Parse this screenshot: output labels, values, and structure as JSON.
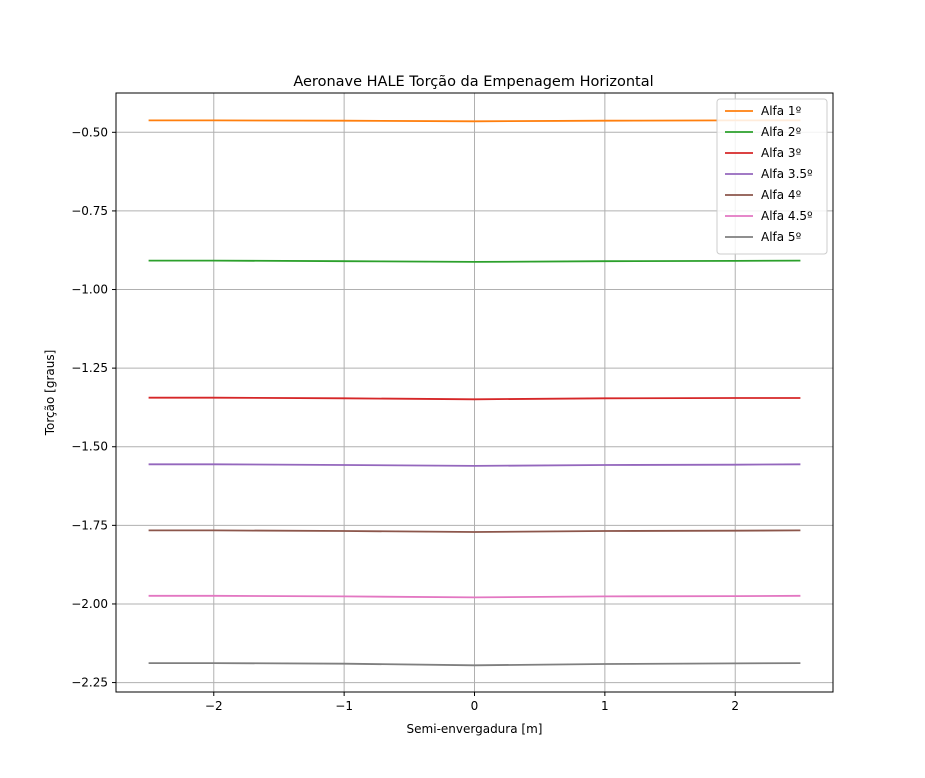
{
  "chart_data": {
    "type": "line",
    "title": "Aeronave HALE Torção da Empenagem Horizontal",
    "xlabel": "Semi-envergadura [m]",
    "ylabel": "Torção [graus]",
    "xlim": [
      -2.75,
      2.75
    ],
    "ylim": [
      -2.28,
      -0.375
    ],
    "xticks": [
      -2,
      -1,
      0,
      1,
      2
    ],
    "xtick_labels": [
      "−2",
      "−1",
      "0",
      "1",
      "2"
    ],
    "yticks": [
      -0.5,
      -0.75,
      -1.0,
      -1.25,
      -1.5,
      -1.75,
      -2.0,
      -2.25
    ],
    "ytick_labels": [
      "−0.50",
      "−0.75",
      "−1.00",
      "−1.25",
      "−1.50",
      "−1.75",
      "−2.00",
      "−2.25"
    ],
    "grid": true,
    "legend_position": "top-right",
    "x": [
      -2.5,
      -2,
      -1,
      0,
      1,
      2,
      2.5
    ],
    "series": [
      {
        "name": "Alfa 1º",
        "color": "#ff7f0e",
        "values": [
          -0.462,
          -0.462,
          -0.463,
          -0.465,
          -0.463,
          -0.462,
          -0.462
        ]
      },
      {
        "name": "Alfa 2º",
        "color": "#2ca02c",
        "values": [
          -0.908,
          -0.908,
          -0.91,
          -0.912,
          -0.91,
          -0.909,
          -0.908
        ]
      },
      {
        "name": "Alfa 3º",
        "color": "#d62728",
        "values": [
          -1.344,
          -1.344,
          -1.346,
          -1.349,
          -1.346,
          -1.345,
          -1.345
        ]
      },
      {
        "name": "Alfa 3.5º",
        "color": "#9467bd",
        "values": [
          -1.556,
          -1.556,
          -1.558,
          -1.561,
          -1.558,
          -1.557,
          -1.556
        ]
      },
      {
        "name": "Alfa 4º",
        "color": "#8c564b",
        "values": [
          -1.766,
          -1.766,
          -1.768,
          -1.771,
          -1.768,
          -1.767,
          -1.766
        ]
      },
      {
        "name": "Alfa 4.5º",
        "color": "#e377c2",
        "values": [
          -1.974,
          -1.974,
          -1.976,
          -1.979,
          -1.976,
          -1.975,
          -1.974
        ]
      },
      {
        "name": "Alfa 5º",
        "color": "#7f7f7f",
        "values": [
          -2.188,
          -2.188,
          -2.19,
          -2.195,
          -2.191,
          -2.189,
          -2.188
        ]
      }
    ]
  }
}
